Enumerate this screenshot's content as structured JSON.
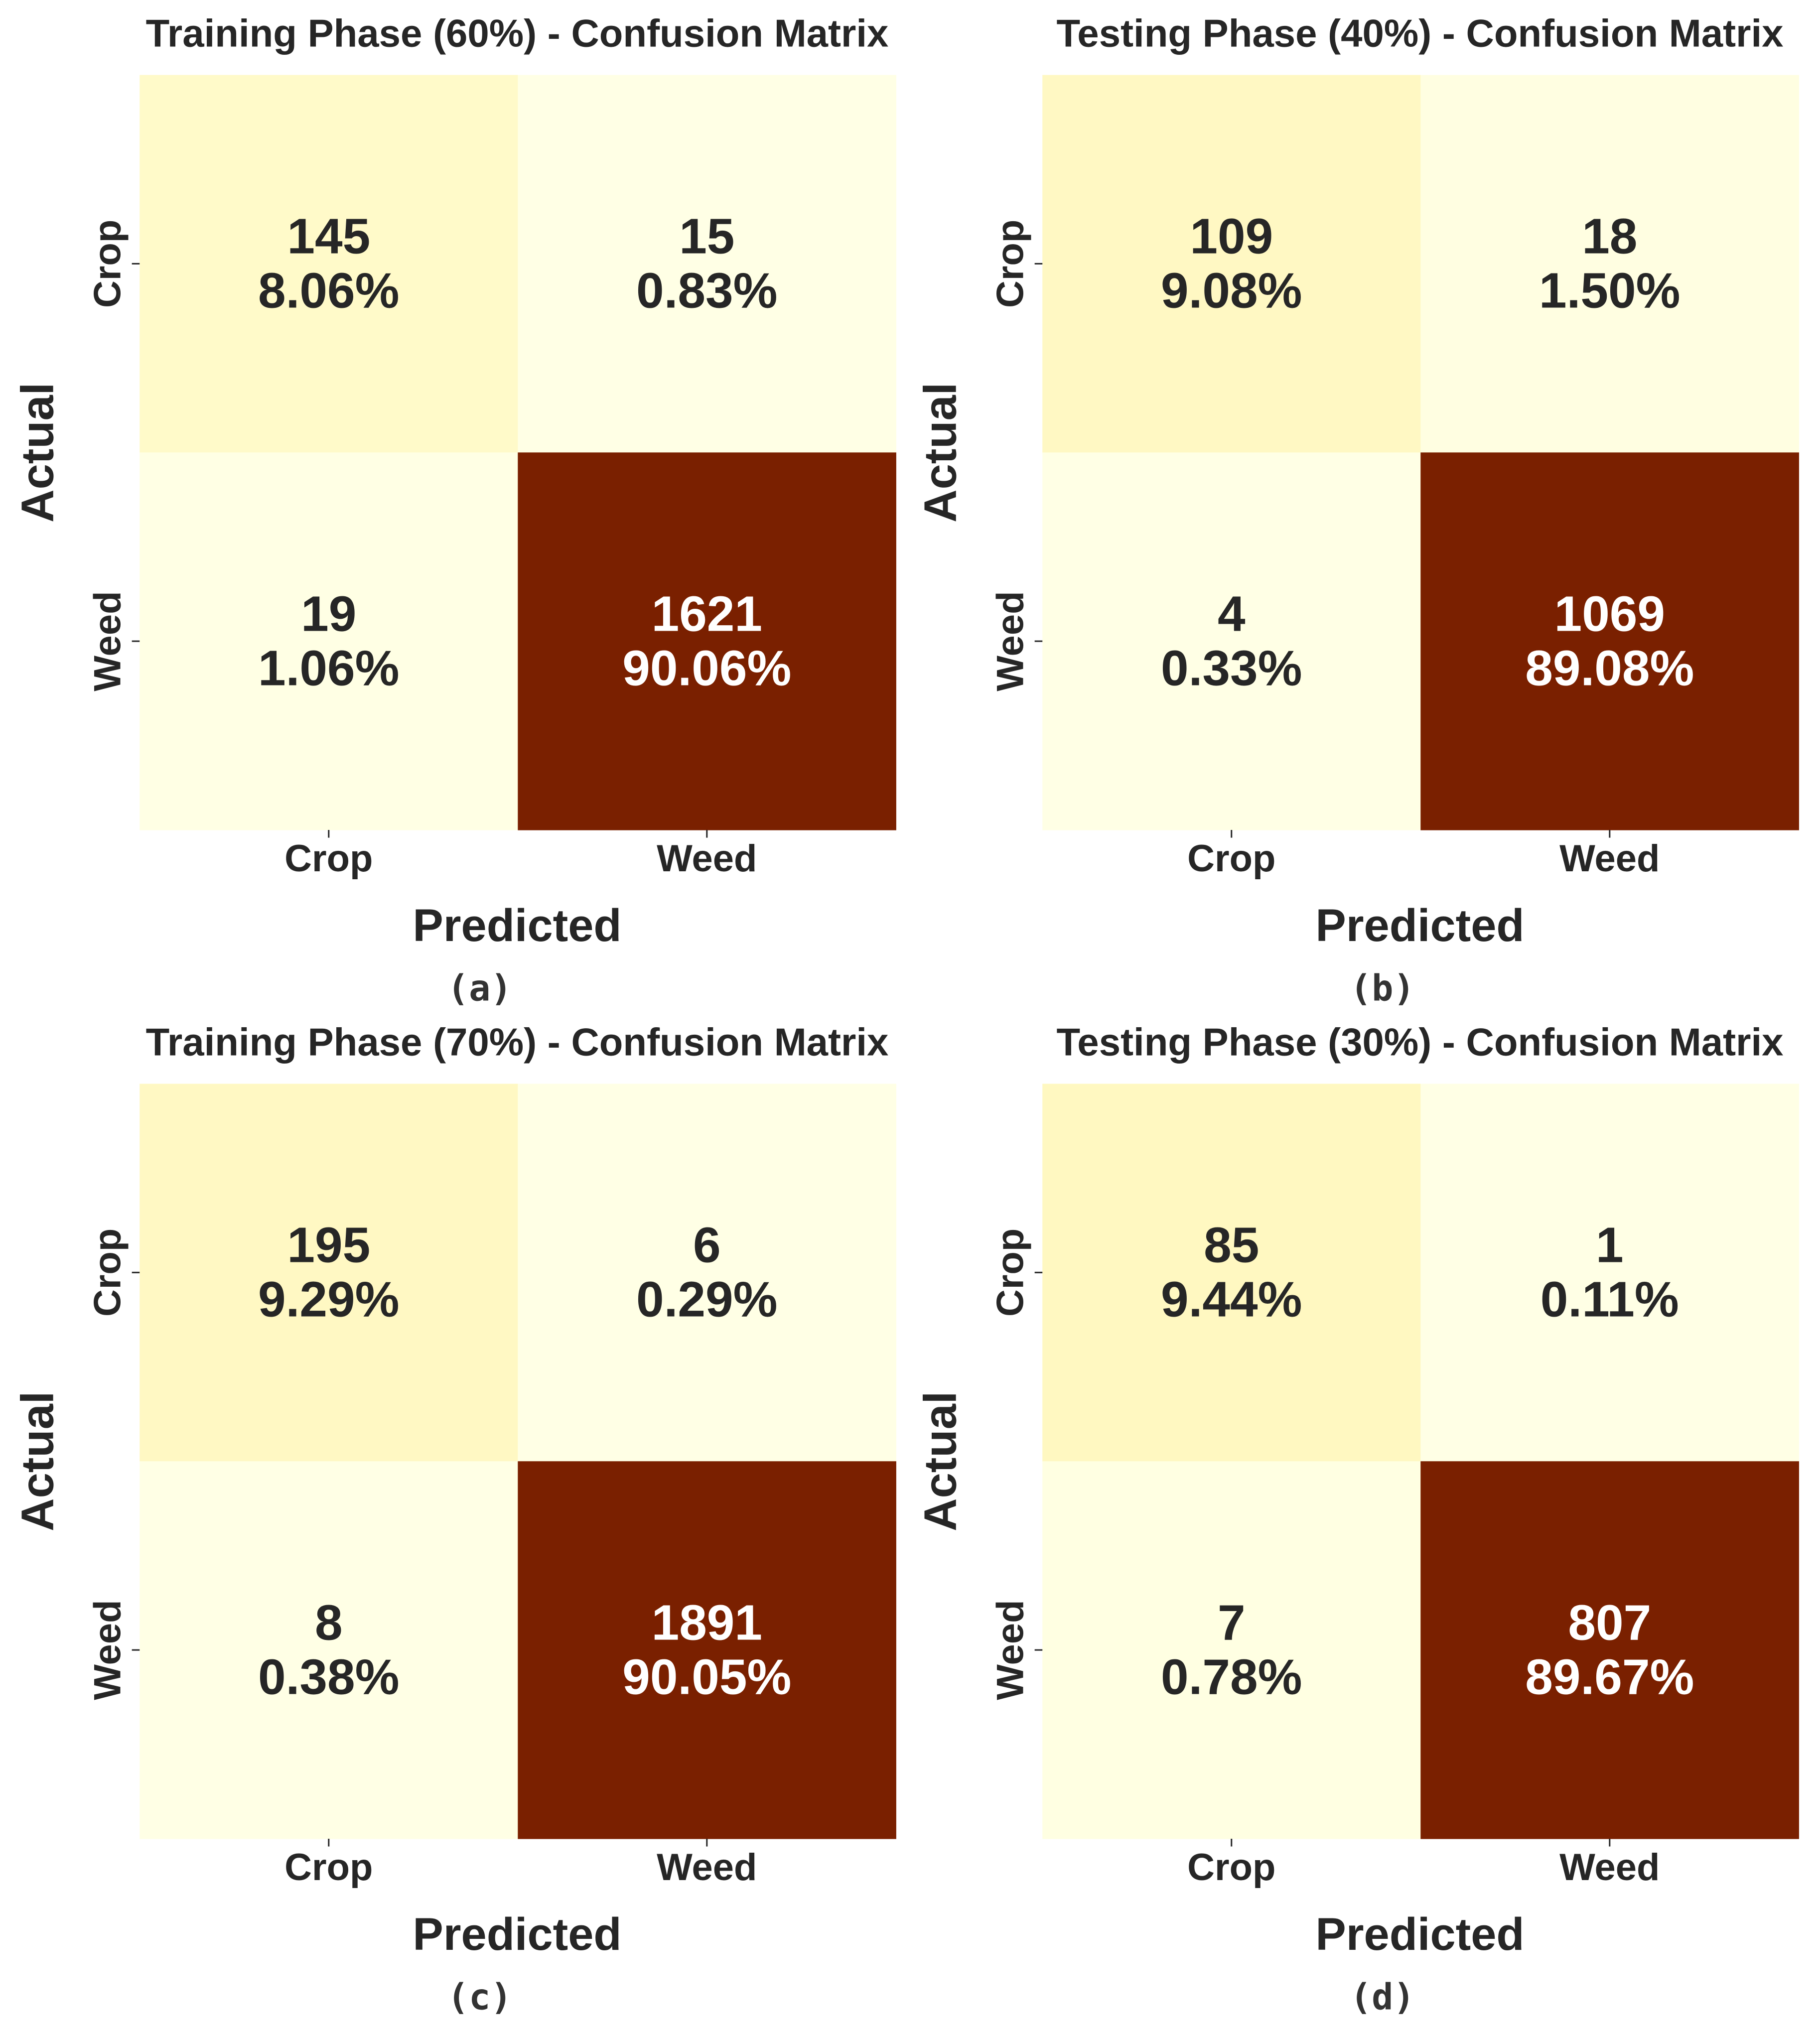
{
  "chart_data": [
    {
      "type": "heatmap",
      "title": "Training Phase (60%) - Confusion Matrix",
      "xlabel": "Predicted",
      "ylabel": "Actual",
      "x_categories": [
        "Crop",
        "Weed"
      ],
      "y_categories": [
        "Crop",
        "Weed"
      ],
      "counts": [
        [
          145,
          15
        ],
        [
          19,
          1621
        ]
      ],
      "percents": [
        [
          "8.06%",
          "0.83%"
        ],
        [
          "1.06%",
          "90.06%"
        ]
      ],
      "caption": "(a)"
    },
    {
      "type": "heatmap",
      "title": "Testing Phase (40%) - Confusion Matrix",
      "xlabel": "Predicted",
      "ylabel": "Actual",
      "x_categories": [
        "Crop",
        "Weed"
      ],
      "y_categories": [
        "Crop",
        "Weed"
      ],
      "counts": [
        [
          109,
          18
        ],
        [
          4,
          1069
        ]
      ],
      "percents": [
        [
          "9.08%",
          "1.50%"
        ],
        [
          "0.33%",
          "89.08%"
        ]
      ],
      "caption": "(b)"
    },
    {
      "type": "heatmap",
      "title": "Training Phase (70%) - Confusion Matrix",
      "xlabel": "Predicted",
      "ylabel": "Actual",
      "x_categories": [
        "Crop",
        "Weed"
      ],
      "y_categories": [
        "Crop",
        "Weed"
      ],
      "counts": [
        [
          195,
          6
        ],
        [
          8,
          1891
        ]
      ],
      "percents": [
        [
          "9.29%",
          "0.29%"
        ],
        [
          "0.38%",
          "90.05%"
        ]
      ],
      "caption": "(c)"
    },
    {
      "type": "heatmap",
      "title": "Testing Phase (30%) - Confusion Matrix",
      "xlabel": "Predicted",
      "ylabel": "Actual",
      "x_categories": [
        "Crop",
        "Weed"
      ],
      "y_categories": [
        "Crop",
        "Weed"
      ],
      "counts": [
        [
          85,
          1
        ],
        [
          7,
          807
        ]
      ],
      "percents": [
        [
          "9.44%",
          "0.11%"
        ],
        [
          "0.78%",
          "89.67%"
        ]
      ],
      "caption": "(d)"
    }
  ],
  "colors": {
    "scale_low": "#ffffe5",
    "scale_mid": "#fff7bc",
    "scale_high": "#7a2000",
    "text_dark": "#262626",
    "text_light": "#ffffff"
  }
}
